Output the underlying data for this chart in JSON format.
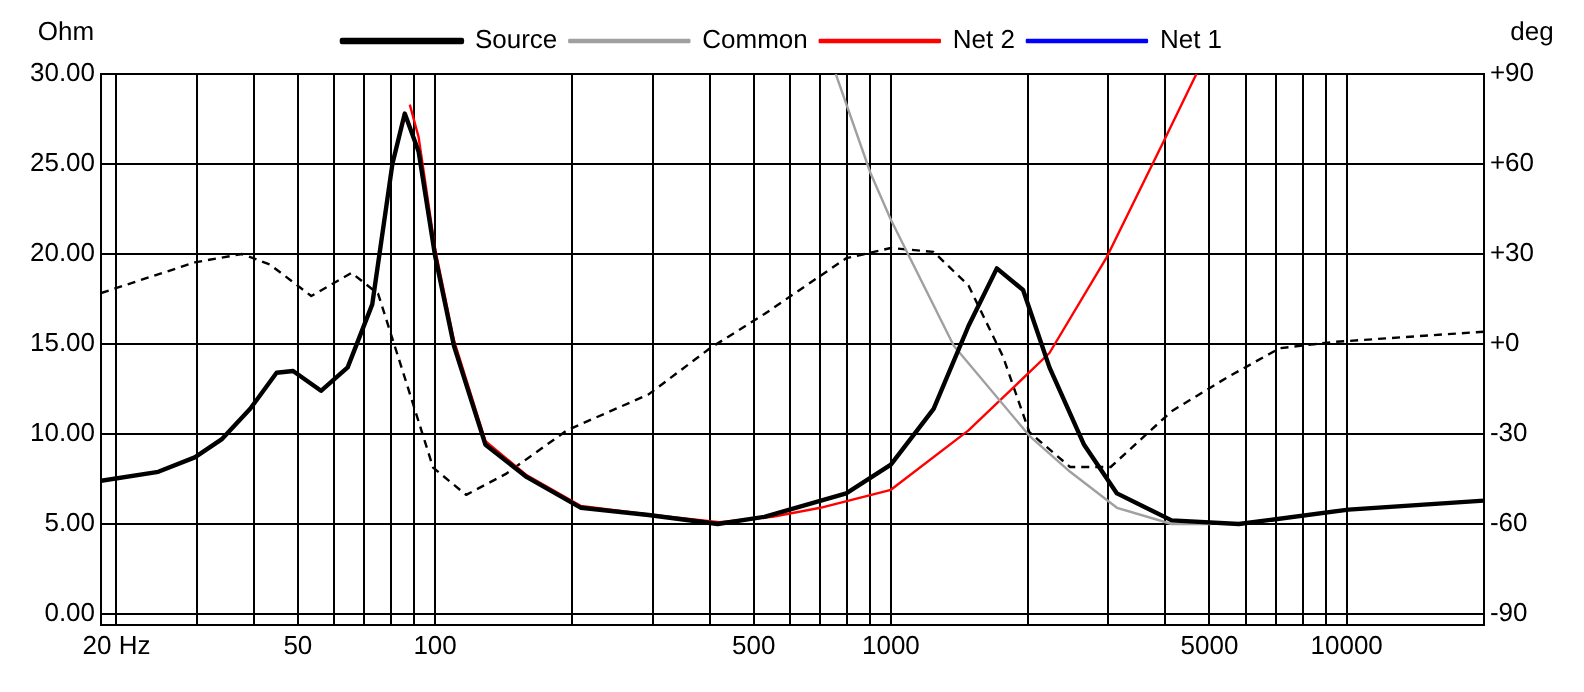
{
  "chart_data": {
    "type": "line",
    "ylabel": "Ohm",
    "y2label": "deg",
    "log": "x",
    "grid": true,
    "legend": "top",
    "line_style": "solid",
    "xlim": [
      18.5,
      20000
    ],
    "xticks": [
      {
        "value": 20,
        "label": "20 Hz"
      },
      {
        "value": 30,
        "label": null
      },
      {
        "value": 40,
        "label": null
      },
      50,
      {
        "value": 60,
        "label": null
      },
      {
        "value": 70,
        "label": null
      },
      {
        "value": 80,
        "label": null
      },
      {
        "value": 90,
        "label": null
      },
      100,
      {
        "value": 200,
        "label": null
      },
      {
        "value": 300,
        "label": null
      },
      {
        "value": 400,
        "label": null
      },
      500,
      {
        "value": 600,
        "label": null
      },
      {
        "value": 700,
        "label": null
      },
      {
        "value": 800,
        "label": null
      },
      {
        "value": 900,
        "label": null
      },
      1000,
      {
        "value": 2000,
        "label": null
      },
      {
        "value": 3000,
        "label": null
      },
      {
        "value": 4000,
        "label": null
      },
      5000,
      {
        "value": 6000,
        "label": null
      },
      {
        "value": 7000,
        "label": null
      },
      {
        "value": 8000,
        "label": null
      },
      {
        "value": 9000,
        "label": null
      },
      10000,
      {
        "value": 20000,
        "label": null
      }
    ],
    "ylim": [
      -0.6,
      30
    ],
    "yticks": [
      {
        "value": 0,
        "label": "0.00"
      },
      {
        "value": 5,
        "label": "5.00"
      },
      {
        "value": 10,
        "label": "10.00"
      },
      {
        "value": 15,
        "label": "15.00"
      },
      {
        "value": 20,
        "label": "20.00"
      },
      {
        "value": 25,
        "label": "25.00"
      },
      {
        "value": 30,
        "label": "30.00"
      }
    ],
    "y2lim": [
      -93.6,
      90
    ],
    "y2ticks": [
      {
        "value": -90,
        "label": "-90"
      },
      {
        "value": -60,
        "label": "-60"
      },
      {
        "value": -30,
        "label": "-30"
      },
      {
        "value": 0,
        "label": "+0"
      },
      {
        "value": 30,
        "label": "+30"
      },
      {
        "value": 60,
        "label": "+60"
      },
      {
        "value": 90,
        "label": "+90"
      }
    ],
    "series": [
      {
        "name": "Source",
        "color": "#000000",
        "x": [
          18.5,
          24.7,
          29.7,
          34,
          39.3,
          44.9,
          48.8,
          56.2,
          64.3,
          72.8,
          80.6,
          85.8,
          92,
          100,
          110,
          129,
          159,
          209,
          294,
          417,
          528,
          798,
          1000,
          1241,
          1480,
          1708,
          1950,
          2228,
          2654,
          3133,
          4130,
          5800,
          10090,
          20000
        ],
        "values": [
          7.4,
          7.9,
          8.7,
          9.7,
          11.4,
          13.4,
          13.5,
          12.4,
          13.7,
          17.2,
          25.0,
          27.8,
          25.7,
          19.9,
          14.9,
          9.4,
          7.6,
          5.9,
          5.5,
          5.0,
          5.4,
          6.7,
          8.3,
          11.4,
          16.0,
          19.2,
          18.0,
          13.7,
          9.4,
          6.7,
          5.2,
          5.0,
          5.8,
          6.3
        ]
      },
      {
        "name": "Common",
        "color": "#a0a0a0",
        "x": [
          757,
          902,
          1000,
          1374,
          2013,
          2473,
          3133,
          4130,
          5070
        ],
        "values": [
          30,
          24.5,
          21.9,
          14.9,
          9.9,
          7.9,
          5.9,
          5.0,
          5.0
        ]
      },
      {
        "name": "Net 2",
        "color": "#ff0000",
        "x": [
          88,
          92,
          100,
          110,
          129,
          159,
          209,
          300,
          420,
          550,
          700,
          1000,
          1480,
          2228,
          2972,
          4010,
          4680
        ],
        "values": [
          28.3,
          26.5,
          20.3,
          15.2,
          9.6,
          7.7,
          6.0,
          5.5,
          5.1,
          5.4,
          5.9,
          6.9,
          10.2,
          14.5,
          19.8,
          26.5,
          30
        ]
      },
      {
        "name": "Net 1",
        "color": "#0000ff"
      },
      {
        "color": "#000000",
        "axis": "y2",
        "line_style": "dashed",
        "x": [
          18.5,
          29.7,
          37.7,
          43.4,
          53.5,
          65.6,
          75,
          85.8,
          99,
          117,
          143,
          195,
          294,
          401,
          528,
          798,
          1000,
          1241,
          1480,
          1762,
          2013,
          2473,
          3035,
          4130,
          5460,
          7130,
          9400,
          20000
        ],
        "values": [
          17,
          27.2,
          30,
          26.5,
          16,
          23.7,
          16.7,
          -11.2,
          -41.2,
          -50.3,
          -43.3,
          -28.7,
          -16.8,
          -1.4,
          10,
          28.6,
          32,
          30.7,
          19.5,
          -4.2,
          -29.4,
          -41,
          -41,
          -22.4,
          -11.2,
          -1.4,
          0.7,
          4.1
        ]
      }
    ]
  }
}
